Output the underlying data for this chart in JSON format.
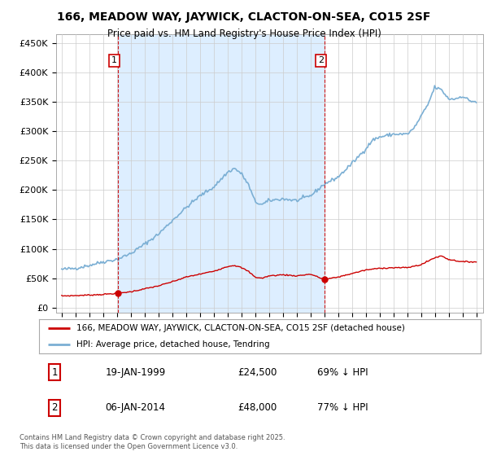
{
  "title": "166, MEADOW WAY, JAYWICK, CLACTON-ON-SEA, CO15 2SF",
  "subtitle": "Price paid vs. HM Land Registry's House Price Index (HPI)",
  "transactions": [
    {
      "date": 1999.05,
      "price": 24500,
      "label": "1"
    },
    {
      "date": 2014.02,
      "price": 48000,
      "label": "2"
    }
  ],
  "hpi_color": "#7bafd4",
  "hpi_fill_color": "#ddeeff",
  "price_color": "#cc0000",
  "vline_color": "#cc0000",
  "yticks": [
    0,
    50000,
    100000,
    150000,
    200000,
    250000,
    300000,
    350000,
    400000,
    450000
  ],
  "ylim": [
    -8000,
    465000
  ],
  "xlim_start": 1994.6,
  "xlim_end": 2025.5,
  "legend_line1": "166, MEADOW WAY, JAYWICK, CLACTON-ON-SEA, CO15 2SF (detached house)",
  "legend_line2": "HPI: Average price, detached house, Tendring",
  "footer": "Contains HM Land Registry data © Crown copyright and database right 2025.\nThis data is licensed under the Open Government Licence v3.0.",
  "table_rows": [
    {
      "num": "1",
      "date": "19-JAN-1999",
      "price": "£24,500",
      "hpi": "69% ↓ HPI"
    },
    {
      "num": "2",
      "date": "06-JAN-2014",
      "price": "£48,000",
      "hpi": "77% ↓ HPI"
    }
  ],
  "background_color": "#ffffff",
  "grid_color": "#cccccc",
  "hpi_control_years": [
    1995,
    1996,
    1997,
    1998,
    1999,
    2000,
    2001,
    2002,
    2003,
    2004,
    2005,
    2006,
    2007,
    2007.5,
    2008,
    2008.5,
    2009,
    2009.5,
    2010,
    2011,
    2012,
    2013,
    2014,
    2015,
    2016,
    2017,
    2017.5,
    2018,
    2019,
    2020,
    2020.5,
    2021,
    2021.5,
    2022,
    2022.5,
    2023,
    2023.5,
    2024,
    2024.5,
    2025
  ],
  "hpi_control_vals": [
    65000,
    67000,
    72000,
    78000,
    82000,
    92000,
    108000,
    125000,
    148000,
    170000,
    190000,
    205000,
    230000,
    237000,
    228000,
    210000,
    180000,
    175000,
    182000,
    185000,
    182000,
    190000,
    210000,
    222000,
    245000,
    270000,
    285000,
    290000,
    295000,
    295000,
    305000,
    325000,
    345000,
    375000,
    370000,
    355000,
    355000,
    360000,
    352000,
    350000
  ],
  "price_control_years": [
    1995,
    1996,
    1997,
    1998,
    1999,
    2000,
    2001,
    2002,
    2003,
    2004,
    2005,
    2006,
    2007,
    2007.5,
    2008,
    2008.5,
    2009,
    2009.5,
    2010,
    2011,
    2012,
    2013,
    2014,
    2015,
    2016,
    2017,
    2018,
    2019,
    2020,
    2021,
    2022,
    2022.5,
    2023,
    2024,
    2025
  ],
  "price_control_vals": [
    20000,
    20500,
    21500,
    22500,
    24500,
    27000,
    32000,
    37000,
    44000,
    52000,
    57000,
    62000,
    70000,
    72000,
    68000,
    62000,
    52000,
    50000,
    54000,
    56000,
    54000,
    57000,
    48000,
    52000,
    58000,
    64000,
    67000,
    68000,
    68000,
    73000,
    85000,
    88000,
    82000,
    78000,
    78000
  ]
}
